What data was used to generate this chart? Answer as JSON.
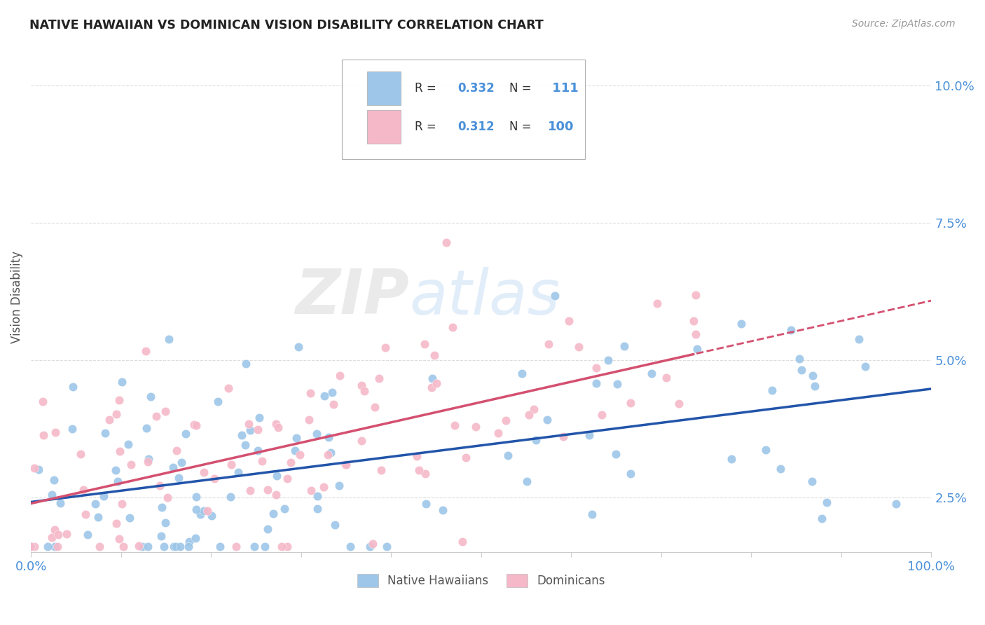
{
  "title": "NATIVE HAWAIIAN VS DOMINICAN VISION DISABILITY CORRELATION CHART",
  "source": "Source: ZipAtlas.com",
  "ylabel": "Vision Disability",
  "yticks": [
    0.025,
    0.05,
    0.075,
    0.1
  ],
  "ytick_labels": [
    "2.5%",
    "5.0%",
    "7.5%",
    "10.0%"
  ],
  "xlim": [
    0.0,
    1.0
  ],
  "ylim": [
    0.015,
    0.108
  ],
  "nh_color": "#9ec6e8",
  "nh_color_line": "#2255aa",
  "dom_color": "#f5b8c8",
  "dom_color_line": "#d45070",
  "tick_color": "#4a90d9",
  "text_color": "#555555",
  "grid_color": "#dddddd",
  "nh_R": 0.332,
  "nh_N": 111,
  "dom_R": 0.312,
  "dom_N": 100,
  "legend_label_nh": "Native Hawaiians",
  "legend_label_dom": "Dominicans",
  "nh_line_start_y": 0.023,
  "nh_line_end_y": 0.047,
  "dom_line_start_y": 0.026,
  "dom_line_mid_y": 0.046,
  "dom_line_end_y": 0.053
}
